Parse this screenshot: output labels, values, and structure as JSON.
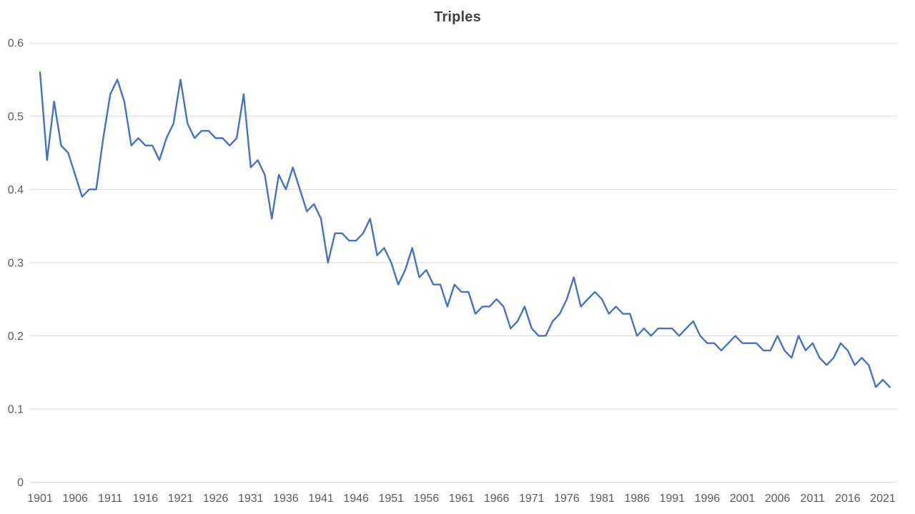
{
  "chart_data": {
    "type": "line",
    "title": "Triples",
    "series_name": "Triples",
    "xlabel": "",
    "ylabel": "",
    "x_start_year": 1901,
    "x_end_year": 2022,
    "ylim": [
      0,
      0.6
    ],
    "grid": "horizontal",
    "legend": "none",
    "y_tick_labels": [
      "0",
      "0.1",
      "0.2",
      "0.3",
      "0.4",
      "0.5",
      "0.6"
    ],
    "x_tick_years": [
      1901,
      1906,
      1911,
      1916,
      1921,
      1926,
      1931,
      1936,
      1941,
      1946,
      1951,
      1956,
      1961,
      1966,
      1971,
      1976,
      1981,
      1986,
      1991,
      1996,
      2001,
      2006,
      2011,
      2016,
      2021
    ],
    "values": [
      0.56,
      0.44,
      0.52,
      0.46,
      0.45,
      0.42,
      0.39,
      0.4,
      0.4,
      0.47,
      0.53,
      0.55,
      0.52,
      0.46,
      0.47,
      0.46,
      0.46,
      0.44,
      0.47,
      0.49,
      0.55,
      0.49,
      0.47,
      0.48,
      0.48,
      0.47,
      0.47,
      0.46,
      0.47,
      0.53,
      0.43,
      0.44,
      0.42,
      0.36,
      0.42,
      0.4,
      0.43,
      0.4,
      0.37,
      0.38,
      0.36,
      0.3,
      0.34,
      0.34,
      0.33,
      0.33,
      0.34,
      0.36,
      0.31,
      0.32,
      0.3,
      0.27,
      0.29,
      0.32,
      0.28,
      0.29,
      0.27,
      0.27,
      0.24,
      0.27,
      0.26,
      0.26,
      0.23,
      0.24,
      0.24,
      0.25,
      0.24,
      0.21,
      0.22,
      0.24,
      0.21,
      0.2,
      0.2,
      0.22,
      0.23,
      0.25,
      0.28,
      0.24,
      0.25,
      0.26,
      0.25,
      0.23,
      0.24,
      0.23,
      0.23,
      0.2,
      0.21,
      0.2,
      0.21,
      0.21,
      0.21,
      0.2,
      0.21,
      0.22,
      0.2,
      0.19,
      0.19,
      0.18,
      0.19,
      0.2,
      0.19,
      0.19,
      0.19,
      0.18,
      0.18,
      0.2,
      0.18,
      0.17,
      0.2,
      0.18,
      0.19,
      0.17,
      0.16,
      0.17,
      0.19,
      0.18,
      0.16,
      0.17,
      0.16,
      0.13,
      0.14,
      0.13
    ],
    "colors": {
      "line": "#4472C4",
      "gridline": "#D9D9D9",
      "axis_line": "#D9D9D9",
      "axis_label": "#595959",
      "title": "#404040",
      "background": "#FFFFFF"
    }
  }
}
